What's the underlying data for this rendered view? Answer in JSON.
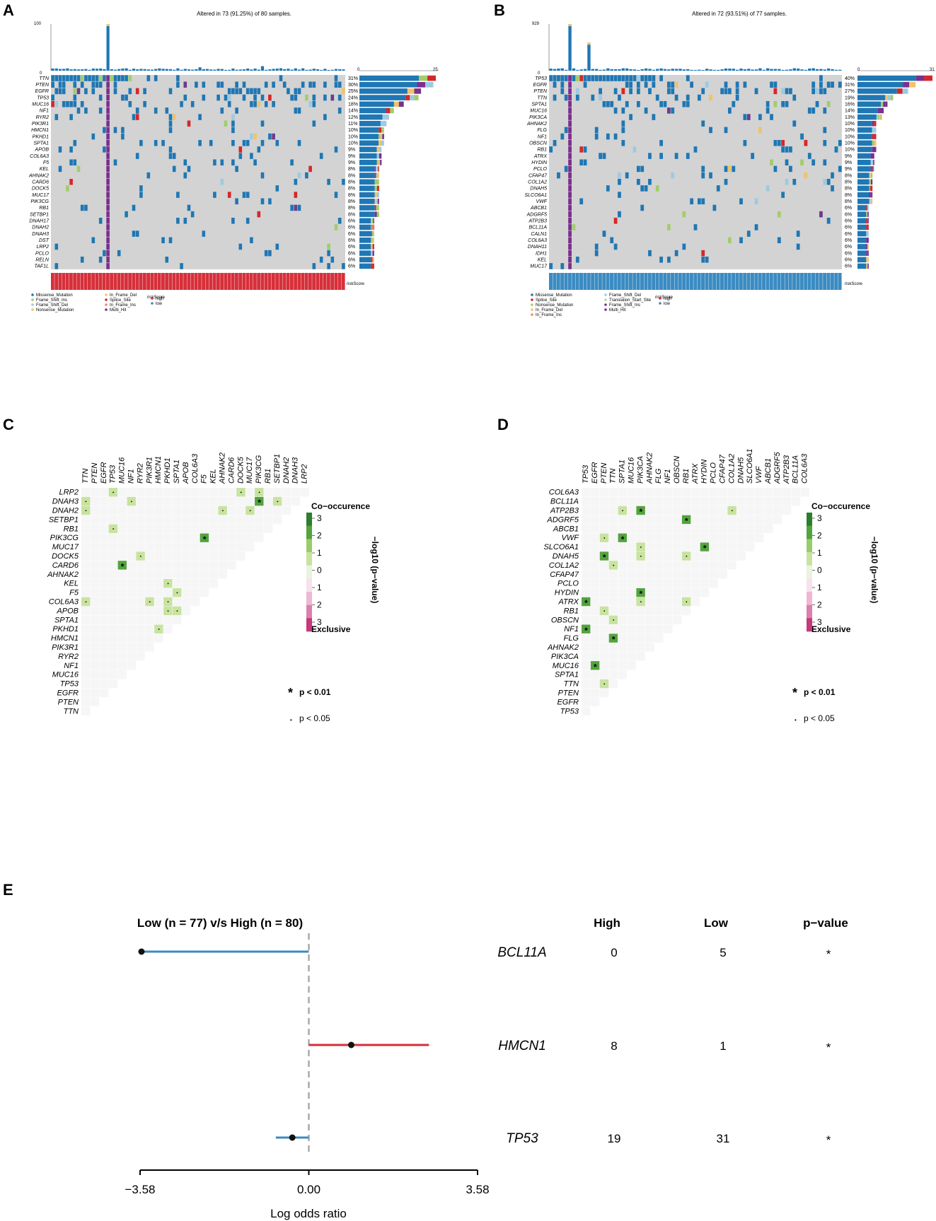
{
  "panels": {
    "a": "A",
    "b": "B",
    "c": "C",
    "d": "D",
    "e": "E"
  },
  "colors": {
    "missense": "#1f77b4",
    "frame_shift_ins": "#6c3b8f",
    "frame_shift_del": "#9ecae1",
    "nonsense": "#a1cd6c",
    "in_frame_del": "#f0c36a",
    "splice_site": "#d62728",
    "in_frame_ins": "#f08a6a",
    "multi_hit": "#7b2f8e",
    "translation_start": "#b2df8a",
    "grid": "#d3d3d3",
    "risk_high": "#d6303a",
    "risk_low": "#3b8bc2",
    "cooc": [
      "#eaf3de",
      "#c8e39f",
      "#98cd6a",
      "#53a33f",
      "#2b7f2b"
    ],
    "excl": [
      "#f7e1ec",
      "#eeb8d2",
      "#dc7fae",
      "#c7377c"
    ],
    "bar_low": "#3b8bc2",
    "bar_high": "#d6303a"
  },
  "chart_data": [
    {
      "type": "heatmap",
      "id": "A",
      "title": "Altered in 73 (91.25%) of 80 samples.",
      "top_axis_max": "100",
      "top_axis_min": "0",
      "right_axis": [
        "0",
        "25"
      ],
      "genes": [
        "TTN",
        "PTEN",
        "EGFR",
        "TP53",
        "MUC16",
        "NF1",
        "RYR2",
        "PIK3R1",
        "HMCN1",
        "PKHD1",
        "SPTA1",
        "APOB",
        "COL6A3",
        "F5",
        "KEL",
        "AHNAK2",
        "CARD6",
        "DOCK5",
        "MUC17",
        "PIK3CG",
        "RB1",
        "SETBP1",
        "DNAH17",
        "DNAH2",
        "DNAH3",
        "DST",
        "LRP2",
        "PCLO",
        "RELN",
        "TAF1L"
      ],
      "percents": [
        "31%",
        "30%",
        "25%",
        "24%",
        "18%",
        "14%",
        "12%",
        "11%",
        "10%",
        "10%",
        "10%",
        "9%",
        "9%",
        "9%",
        "8%",
        "8%",
        "8%",
        "8%",
        "8%",
        "8%",
        "8%",
        "8%",
        "6%",
        "6%",
        "6%",
        "6%",
        "6%",
        "6%",
        "6%",
        "6%"
      ],
      "risk_label": "riskScore",
      "legend": {
        "items": [
          "Missense_Mutation",
          "Frame_Shift_Ins",
          "Frame_Shift_Del",
          "Nonsense_Mutation",
          "In_Frame_Del",
          "Splice_Site",
          "In_Frame_Ins",
          "Multi_Hit"
        ],
        "risk_title": "riskScore",
        "risk_items": [
          "high",
          "low"
        ]
      }
    },
    {
      "type": "heatmap",
      "id": "B",
      "title": "Altered in 72 (93.51%) of 77 samples.",
      "top_axis_max": "929",
      "top_axis_min": "0",
      "right_axis": [
        "0",
        "31"
      ],
      "genes": [
        "TP53",
        "EGFR",
        "PTEN",
        "TTN",
        "SPTA1",
        "MUC16",
        "PIK3CA",
        "AHNAK2",
        "FLG",
        "NF1",
        "OBSCN",
        "RB1",
        "ATRX",
        "HYDIN",
        "PCLO",
        "CFAP47",
        "COL1A2",
        "DNAH5",
        "SLCO6A1",
        "VWF",
        "ABCB1",
        "ADGRF5",
        "ATP2B3",
        "BCL11A",
        "CALN1",
        "COL6A3",
        "DNAH11",
        "IDH1",
        "KEL",
        "MUC17"
      ],
      "percents": [
        "40%",
        "31%",
        "27%",
        "19%",
        "16%",
        "14%",
        "13%",
        "10%",
        "10%",
        "10%",
        "10%",
        "10%",
        "9%",
        "9%",
        "9%",
        "8%",
        "8%",
        "8%",
        "8%",
        "8%",
        "6%",
        "6%",
        "6%",
        "6%",
        "6%",
        "6%",
        "6%",
        "6%",
        "6%",
        "6%"
      ],
      "risk_label": "riskScore",
      "legend": {
        "items": [
          "Missense_Mutation",
          "Splice_Site",
          "Nonsense_Mutation",
          "In_Frame_Del",
          "In_Frame_Ins",
          "Frame_Shift_Del",
          "Translation_Start_Site",
          "Frame_Shift_Ins",
          "Multi_Hit"
        ],
        "risk_title": "riskScore",
        "risk_items": [
          "high",
          "low"
        ]
      }
    },
    {
      "type": "heatmap",
      "id": "C",
      "genes_rows": [
        "LRP2",
        "DNAH3",
        "DNAH2",
        "SETBP1",
        "RB1",
        "PIK3CG",
        "MUC17",
        "DOCK5",
        "CARD6",
        "AHNAK2",
        "KEL",
        "F5",
        "COL6A3",
        "APOB",
        "SPTA1",
        "PKHD1",
        "HMCN1",
        "PIK3R1",
        "RYR2",
        "NF1",
        "MUC16",
        "TP53",
        "EGFR",
        "PTEN",
        "TTN"
      ],
      "genes_cols": [
        "TTN",
        "PTEN",
        "EGFR",
        "TP53",
        "MUC16",
        "NF1",
        "RYR2",
        "PIK3R1",
        "HMCN1",
        "PKHD1",
        "SPTA1",
        "APOB",
        "COL6A3",
        "F5",
        "KEL",
        "AHNAK2",
        "CARD6",
        "DOCK5",
        "MUC17",
        "PIK3CG",
        "RB1",
        "SETBP1",
        "DNAH2",
        "DNAH3",
        "LRP2"
      ],
      "cells": [
        {
          "r": 0,
          "c": 3,
          "v": 1,
          "sig": "dot"
        },
        {
          "r": 0,
          "c": 17,
          "v": 1,
          "sig": "dot"
        },
        {
          "r": 0,
          "c": 19,
          "v": 1,
          "sig": "dot"
        },
        {
          "r": 1,
          "c": 0,
          "v": 1,
          "sig": "dot"
        },
        {
          "r": 1,
          "c": 5,
          "v": 1,
          "sig": "dot"
        },
        {
          "r": 1,
          "c": 19,
          "v": 3,
          "sig": "star"
        },
        {
          "r": 1,
          "c": 21,
          "v": 1,
          "sig": "dot"
        },
        {
          "r": 2,
          "c": 0,
          "v": 1,
          "sig": "dot"
        },
        {
          "r": 2,
          "c": 15,
          "v": 1,
          "sig": "dot"
        },
        {
          "r": 2,
          "c": 18,
          "v": 1,
          "sig": "dot"
        },
        {
          "r": 4,
          "c": 3,
          "v": 1,
          "sig": "dot"
        },
        {
          "r": 5,
          "c": 13,
          "v": 3,
          "sig": "star"
        },
        {
          "r": 7,
          "c": 6,
          "v": 1,
          "sig": "dot"
        },
        {
          "r": 8,
          "c": 4,
          "v": 3,
          "sig": "star"
        },
        {
          "r": 10,
          "c": 9,
          "v": 1,
          "sig": "dot"
        },
        {
          "r": 11,
          "c": 10,
          "v": 1,
          "sig": "dot"
        },
        {
          "r": 12,
          "c": 0,
          "v": 1,
          "sig": "dot"
        },
        {
          "r": 12,
          "c": 7,
          "v": 1,
          "sig": "dot"
        },
        {
          "r": 12,
          "c": 9,
          "v": 1,
          "sig": "dot"
        },
        {
          "r": 13,
          "c": 9,
          "v": 1,
          "sig": "dot"
        },
        {
          "r": 13,
          "c": 10,
          "v": 1,
          "sig": "dot"
        },
        {
          "r": 15,
          "c": 8,
          "v": 1,
          "sig": "dot"
        }
      ],
      "legend": {
        "title": "Co−occurence",
        "bottom": "Exclusive",
        "axis": "−log10 (p−value)",
        "ticks": [
          "3",
          "2",
          "1",
          "0",
          "1",
          "2",
          "3"
        ],
        "sig_star": "p < 0.01",
        "sig_dot": "p < 0.05",
        "star": "*",
        "dot": "•"
      }
    },
    {
      "type": "heatmap",
      "id": "D",
      "genes_rows": [
        "COL6A3",
        "BCL11A",
        "ATP2B3",
        "ADGRF5",
        "ABCB1",
        "VWF",
        "SLCO6A1",
        "DNAH5",
        "COL1A2",
        "CFAP47",
        "PCLO",
        "HYDIN",
        "ATRX",
        "RB1",
        "OBSCN",
        "NF1",
        "FLG",
        "AHNAK2",
        "PIK3CA",
        "MUC16",
        "SPTA1",
        "TTN",
        "PTEN",
        "EGFR",
        "TP53"
      ],
      "genes_cols": [
        "TP53",
        "EGFR",
        "PTEN",
        "TTN",
        "SPTA1",
        "MUC16",
        "PIK3CA",
        "AHNAK2",
        "FLG",
        "NF1",
        "OBSCN",
        "RB1",
        "ATRX",
        "HYDIN",
        "PCLO",
        "CFAP47",
        "COL1A2",
        "DNAH5",
        "SLCO6A1",
        "VWF",
        "ABCB1",
        "ADGRF5",
        "ATP2B3",
        "BCL11A",
        "COL6A3"
      ],
      "cells": [
        {
          "r": 2,
          "c": 4,
          "v": 1,
          "sig": "dot"
        },
        {
          "r": 2,
          "c": 6,
          "v": 3,
          "sig": "star"
        },
        {
          "r": 2,
          "c": 16,
          "v": 1,
          "sig": "dot"
        },
        {
          "r": 3,
          "c": 11,
          "v": 3,
          "sig": "star"
        },
        {
          "r": 5,
          "c": 2,
          "v": 1,
          "sig": "dot"
        },
        {
          "r": 5,
          "c": 4,
          "v": 3,
          "sig": "star"
        },
        {
          "r": 6,
          "c": 6,
          "v": 1,
          "sig": "dot"
        },
        {
          "r": 6,
          "c": 13,
          "v": 3,
          "sig": "star"
        },
        {
          "r": 7,
          "c": 2,
          "v": 3,
          "sig": "star"
        },
        {
          "r": 7,
          "c": 6,
          "v": 1,
          "sig": "dot"
        },
        {
          "r": 7,
          "c": 11,
          "v": 1,
          "sig": "dot"
        },
        {
          "r": 8,
          "c": 3,
          "v": 1,
          "sig": "dot"
        },
        {
          "r": 11,
          "c": 6,
          "v": 3,
          "sig": "star"
        },
        {
          "r": 12,
          "c": 0,
          "v": 3,
          "sig": "star"
        },
        {
          "r": 12,
          "c": 6,
          "v": 1,
          "sig": "dot"
        },
        {
          "r": 12,
          "c": 11,
          "v": 1,
          "sig": "dot"
        },
        {
          "r": 13,
          "c": 2,
          "v": 1,
          "sig": "dot"
        },
        {
          "r": 14,
          "c": 3,
          "v": 1,
          "sig": "dot"
        },
        {
          "r": 15,
          "c": 0,
          "v": 3,
          "sig": "star"
        },
        {
          "r": 16,
          "c": 3,
          "v": 3,
          "sig": "star"
        },
        {
          "r": 19,
          "c": 1,
          "v": 3,
          "sig": "star"
        },
        {
          "r": 21,
          "c": 2,
          "v": 1,
          "sig": "dot"
        }
      ],
      "legend": {
        "title": "Co−occurence",
        "bottom": "Exclusive",
        "axis": "−log10 (p−value)",
        "ticks": [
          "3",
          "2",
          "1",
          "0",
          "1",
          "2",
          "3"
        ],
        "sig_star": "p < 0.01",
        "sig_dot": "p < 0.05",
        "star": "*",
        "dot": "•"
      }
    },
    {
      "type": "scatter",
      "id": "E",
      "title": "Low (n = 77) v/s High (n = 80)",
      "xlabel": "Log odds ratio",
      "xlim": [
        -3.58,
        3.58
      ],
      "xticks": [
        "−3.58",
        "0.00",
        "3.58"
      ],
      "headers": {
        "high": "High",
        "low": "Low",
        "pvalue": "p−value"
      },
      "rows": [
        {
          "gene": "BCL11A",
          "log_or": -3.55,
          "ci": [
            -3.55,
            0.0
          ],
          "high": "0",
          "low": "5",
          "p": "*"
        },
        {
          "gene": "HMCN1",
          "log_or": 0.9,
          "ci": [
            0.0,
            2.55
          ],
          "high": "8",
          "low": "1",
          "p": "*"
        },
        {
          "gene": "TP53",
          "log_or": -0.35,
          "ci": [
            -0.7,
            0.0
          ],
          "high": "19",
          "low": "31",
          "p": "*"
        }
      ]
    }
  ]
}
